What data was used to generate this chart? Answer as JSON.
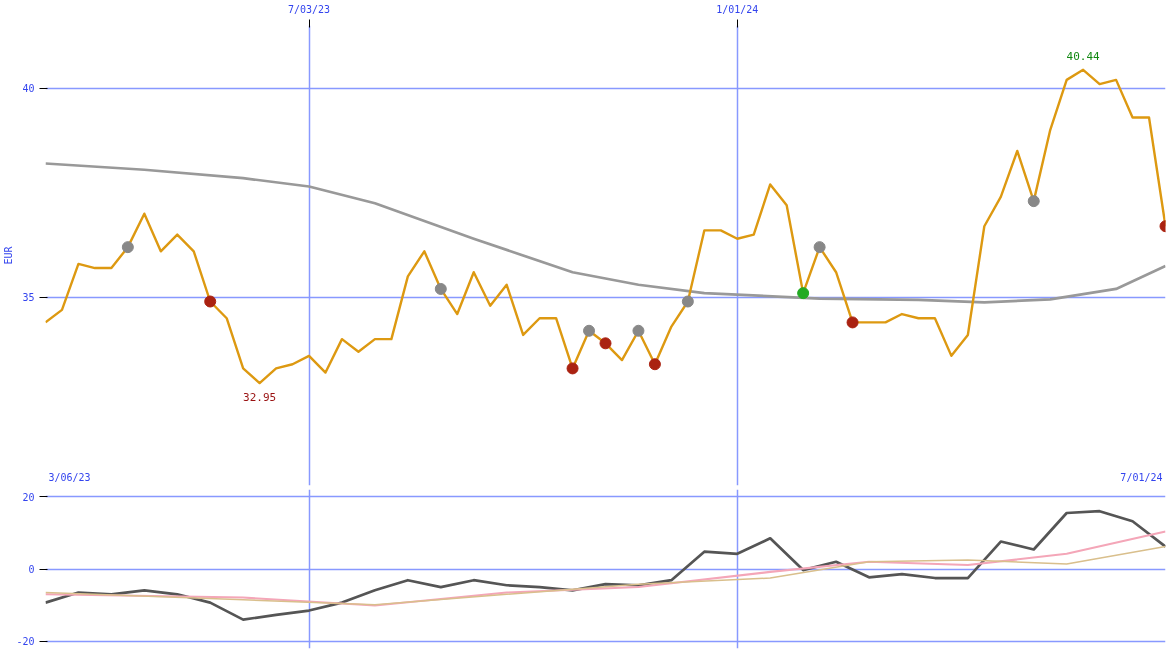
{
  "chart_data": [
    {
      "type": "line",
      "ylabel": "EUR",
      "xlim": [
        "2023-03-13",
        "2024-07-01"
      ],
      "ylim": [
        30.5,
        41.5
      ],
      "xticks": [
        {
          "value": "2023-07-03",
          "label": "7/03/23"
        },
        {
          "value": "2024-01-01",
          "label": "1/01/24"
        }
      ],
      "yticks": [
        35,
        40
      ],
      "grid": true,
      "x": [
        "2023-03-13",
        "2023-03-20",
        "2023-03-27",
        "2023-04-03",
        "2023-04-10",
        "2023-04-17",
        "2023-04-24",
        "2023-05-01",
        "2023-05-08",
        "2023-05-15",
        "2023-05-22",
        "2023-05-29",
        "2023-06-05",
        "2023-06-12",
        "2023-06-19",
        "2023-06-26",
        "2023-07-03",
        "2023-07-10",
        "2023-07-17",
        "2023-07-24",
        "2023-07-31",
        "2023-08-07",
        "2023-08-14",
        "2023-08-21",
        "2023-08-28",
        "2023-09-04",
        "2023-09-11",
        "2023-09-18",
        "2023-09-25",
        "2023-10-02",
        "2023-10-09",
        "2023-10-16",
        "2023-10-23",
        "2023-10-30",
        "2023-11-06",
        "2023-11-13",
        "2023-11-20",
        "2023-11-27",
        "2023-12-04",
        "2023-12-11",
        "2023-12-18",
        "2023-12-25",
        "2024-01-01",
        "2024-01-08",
        "2024-01-15",
        "2024-01-22",
        "2024-01-29",
        "2024-02-05",
        "2024-02-12",
        "2024-02-19",
        "2024-02-26",
        "2024-03-04",
        "2024-03-11",
        "2024-03-18",
        "2024-03-25",
        "2024-04-01",
        "2024-04-08",
        "2024-04-15",
        "2024-04-22",
        "2024-04-29",
        "2024-05-06",
        "2024-05-13",
        "2024-05-20",
        "2024-05-27",
        "2024-06-03",
        "2024-06-10",
        "2024-06-17",
        "2024-06-24",
        "2024-07-01"
      ],
      "series": [
        {
          "color": "#999999",
          "x": [
            "2023-03-13",
            "2023-04-24",
            "2023-06-05",
            "2023-07-03",
            "2023-07-31",
            "2023-09-11",
            "2023-10-23",
            "2023-11-20",
            "2023-12-18",
            "2024-02-05",
            "2024-03-18",
            "2024-04-15",
            "2024-05-13",
            "2024-06-10",
            "2024-07-01"
          ],
          "values": [
            38.2,
            38.05,
            37.85,
            37.65,
            37.25,
            36.4,
            35.6,
            35.3,
            35.1,
            34.97,
            34.94,
            34.88,
            34.95,
            35.2,
            35.75
          ]
        },
        {
          "color": "#dd9911",
          "values": [
            34.4,
            34.7,
            35.8,
            35.7,
            35.7,
            36.2,
            37.0,
            36.1,
            36.5,
            36.1,
            34.9,
            34.5,
            33.3,
            32.95,
            33.3,
            33.4,
            33.6,
            33.2,
            34.0,
            33.7,
            34.0,
            34.0,
            35.5,
            36.1,
            35.2,
            34.6,
            35.6,
            34.8,
            35.3,
            34.1,
            34.5,
            34.5,
            33.3,
            34.2,
            33.9,
            33.5,
            34.2,
            33.4,
            34.3,
            34.9,
            36.6,
            36.6,
            36.4,
            36.5,
            37.7,
            37.2,
            35.1,
            36.2,
            35.6,
            34.4,
            34.4,
            34.4,
            34.6,
            34.5,
            34.5,
            33.6,
            34.1,
            36.7,
            37.4,
            38.5,
            37.3,
            39.0,
            40.2,
            40.44,
            40.1,
            40.2,
            39.3,
            39.3,
            36.7
          ]
        },
        {
          "type": "scatter",
          "color": "#888888",
          "marker": "circle",
          "x": [
            "2023-04-17",
            "2023-08-28",
            "2023-10-30",
            "2023-11-20",
            "2023-12-11",
            "2024-02-05",
            "2024-05-06"
          ],
          "values": [
            36.2,
            35.2,
            34.2,
            34.2,
            34.9,
            36.2,
            37.3
          ]
        },
        {
          "type": "scatter",
          "color": "#aa2211",
          "marker": "circle",
          "x": [
            "2023-05-22",
            "2023-10-23",
            "2023-11-06",
            "2023-11-27",
            "2024-02-19",
            "2024-07-01"
          ],
          "values": [
            34.9,
            33.3,
            33.9,
            33.4,
            34.4,
            36.7
          ]
        },
        {
          "type": "scatter",
          "color": "#22aa22",
          "marker": "circle",
          "x": [
            "2024-01-29"
          ],
          "values": [
            35.1
          ]
        }
      ],
      "annotations": [
        {
          "text": "40.44",
          "x": "2024-05-27",
          "y": 40.44
        },
        {
          "text": "32.95",
          "x": "2023-06-12",
          "y": 32.95
        },
        "3/06/23",
        "7/01/24"
      ]
    },
    {
      "type": "line",
      "xlim": [
        "2023-03-13",
        "2024-07-01"
      ],
      "ylim": [
        -22,
        22
      ],
      "yticks": [
        -20,
        0,
        20
      ],
      "grid": true,
      "tick_labels": "y",
      "xticks": [
        {
          "value": "2023-07-03",
          "label": null
        },
        {
          "value": "2024-01-01",
          "label": null
        }
      ],
      "series": [
        {
          "color": "#555555",
          "x": [
            "2023-03-13",
            "2023-03-27",
            "2023-04-10",
            "2023-04-24",
            "2023-05-08",
            "2023-05-22",
            "2023-06-05",
            "2023-06-19",
            "2023-07-03",
            "2023-07-17",
            "2023-07-31",
            "2023-08-14",
            "2023-08-28",
            "2023-09-11",
            "2023-09-25",
            "2023-10-09",
            "2023-10-23",
            "2023-11-06",
            "2023-11-20",
            "2023-12-04",
            "2023-12-18",
            "2024-01-01",
            "2024-01-15",
            "2024-01-29",
            "2024-02-12",
            "2024-02-26",
            "2024-03-11",
            "2024-03-25",
            "2024-04-08",
            "2024-04-22",
            "2024-05-06",
            "2024-05-20",
            "2024-06-03",
            "2024-06-17",
            "2024-07-01"
          ],
          "values": [
            -9.3,
            -6.5,
            -7,
            -5.9,
            -7,
            -9.3,
            -14,
            -12.7,
            -11.5,
            -9.3,
            -5.9,
            -3.1,
            -5,
            -3.1,
            -4.5,
            -5,
            -5.9,
            -4.2,
            -4.5,
            -3.1,
            4.8,
            4.2,
            8.5,
            -0.3,
            2,
            -2.3,
            -1.4,
            -2.5,
            -2.5,
            7.6,
            5.4,
            15.5,
            16,
            13.2,
            6.2
          ]
        },
        {
          "color": "#f4a6b8",
          "x": [
            "2023-03-13",
            "2023-06-05",
            "2023-07-31",
            "2023-09-25",
            "2023-11-20",
            "2024-01-15",
            "2024-02-26",
            "2024-04-08",
            "2024-05-20",
            "2024-07-01"
          ],
          "values": [
            -7,
            -7.9,
            -10.1,
            -6.5,
            -5,
            -0.8,
            2,
            1.1,
            4.2,
            10.4
          ]
        },
        {
          "color": "#d9bf8c",
          "x": [
            "2023-03-13",
            "2023-06-05",
            "2023-07-31",
            "2023-09-25",
            "2023-11-20",
            "2024-01-15",
            "2024-02-26",
            "2024-04-08",
            "2024-05-20",
            "2024-07-01"
          ],
          "values": [
            -6.5,
            -8.5,
            -9.9,
            -7,
            -4.2,
            -2.5,
            2,
            2.5,
            1.4,
            6.2
          ]
        }
      ]
    }
  ]
}
